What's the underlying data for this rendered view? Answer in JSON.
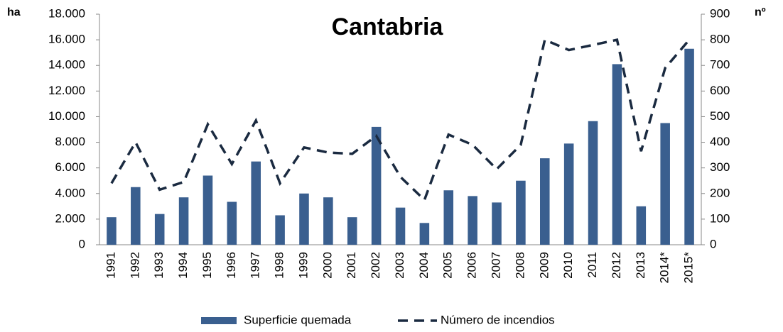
{
  "chart_data": {
    "type": "bar_line",
    "title": "Cantabria",
    "y_label": "ha",
    "y2_label": "nº",
    "categories": [
      "1991",
      "1992",
      "1993",
      "1994",
      "1995",
      "1996",
      "1997",
      "1998",
      "1999",
      "2000",
      "2001",
      "2002",
      "2003",
      "2004",
      "2005",
      "2006",
      "2007",
      "2008",
      "2009",
      "2010",
      "2011",
      "2012",
      "2013",
      "2014*",
      "2015*"
    ],
    "series": [
      {
        "name": "Superficie quemada",
        "color": "#3a5f8f",
        "kind": "bar",
        "values": [
          2150,
          4500,
          2400,
          3700,
          5400,
          3350,
          6500,
          2300,
          4000,
          3700,
          2150,
          9200,
          2900,
          1700,
          4250,
          3800,
          3300,
          5000,
          6750,
          7900,
          9650,
          14100,
          3000,
          9500,
          15300
        ]
      },
      {
        "name": "Número de incendios",
        "color": "#1a2a40",
        "kind": "line",
        "axis": "y2",
        "values": [
          240,
          400,
          215,
          245,
          470,
          315,
          485,
          240,
          380,
          360,
          355,
          425,
          265,
          175,
          430,
          390,
          295,
          390,
          800,
          760,
          780,
          800,
          365,
          690,
          800
        ]
      }
    ],
    "ylim": [
      0,
      18000
    ],
    "yticks": [
      {
        "value": 0,
        "label": "0"
      },
      {
        "value": 2000,
        "label": "2.000"
      },
      {
        "value": 4000,
        "label": "4.000"
      },
      {
        "value": 6000,
        "label": "6.000"
      },
      {
        "value": 8000,
        "label": "8.000"
      },
      {
        "value": 10000,
        "label": "10.000"
      },
      {
        "value": 12000,
        "label": "12.000"
      },
      {
        "value": 14000,
        "label": "14.000"
      },
      {
        "value": 16000,
        "label": "16.000"
      },
      {
        "value": 18000,
        "label": "18.000"
      }
    ],
    "y2lim": [
      0,
      900
    ],
    "y2ticks": [
      0,
      100,
      200,
      300,
      400,
      500,
      600,
      700,
      800,
      900
    ],
    "grid": false
  }
}
